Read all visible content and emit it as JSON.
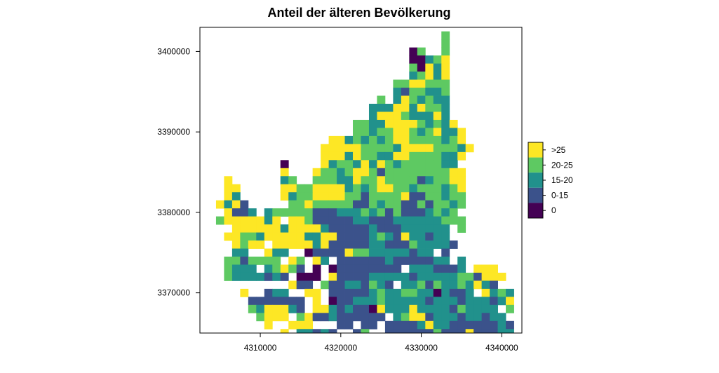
{
  "chart_data": {
    "type": "heatmap",
    "title": "Anteil der älteren Bevölkerung",
    "xlabel": "",
    "ylabel": "",
    "xlim": [
      4302500,
      4342500
    ],
    "ylim": [
      3365000,
      3403000
    ],
    "cell_size": 1000,
    "x_ticks": [
      4310000,
      4320000,
      4330000,
      4340000
    ],
    "x_tick_labels": [
      "4310000",
      "4320000",
      "4330000",
      "4340000"
    ],
    "y_ticks": [
      3370000,
      3380000,
      3390000,
      3400000
    ],
    "y_tick_labels": [
      "3370000",
      "3380000",
      "3390000",
      "3400000"
    ],
    "grid": false,
    "legend_position": "right",
    "categories": [
      {
        "label": ">25",
        "color": "#FDE725"
      },
      {
        "label": "20-25",
        "color": "#5EC962"
      },
      {
        "label": "15-20",
        "color": "#21918C"
      },
      {
        "label": "0-15",
        "color": "#3B528B"
      },
      {
        "label": "0",
        "color": "#440154"
      }
    ],
    "row_start_y": 3402500,
    "row_x_offset": 4302500,
    "rows": [
      "..............................1..........",
      "..............................1..........",
      "..........................41..1..........",
      "..........................44210..........",
      "..........................14020..........",
      "..........................21020..........",
      "........................1100111..........",
      "........................2311221..........",
      "......................1.2012122..........",
      ".....................2220020112..........",
      ".....................2000122202..........",
      "...................1122000012120.........",
      "...................11211001210220........",
      "................00212121001111210........",
      "...............0000011112000011120.......",
      "...............000201122001111220........",
      "..........4....02112020121111122.........",
      "..........0...0112100131111111100........",
      "...0......21..1112201101111321100........",
      "...00.....00110000212100112111210........",
      "...02.....02110000113111103311211........",
      "..0203.....1101111133121133131121........",
      "...0332.211111333222121313332121.........",
      "..10000020.0013333322333222222111........",
      "....000000200002333332333222222.1........",
      "...0011200000220033332123022322..........",
      "....0100.00000203333322333122223.........",
      "....22..022..4333301122222322.3..........",
      "...1131111.01.02.33333323333322.2........",
      "...1222.21013.4.433333333.2223332.000....",
      "...12222323.444.0333322222322222113000...",
      "...........033.133223123.221312212023....",
      ".....0..322..00.333332122112242332.0212..",
      "......3333333.0.43322212222232223222320..",
      "......1200023.00232334022202222312222.1..",
      ".......1000.10332333333.21003222322322...",
      "........0..000...33.33.3333202233333323..",
      "..........0.22323..31..3333331333033322..",
      "..............3....3...3333132333022322..",
      "......................22.303322222333322.",
      "......................2..32.333222332023.",
      "...................................3.21.."
    ]
  }
}
